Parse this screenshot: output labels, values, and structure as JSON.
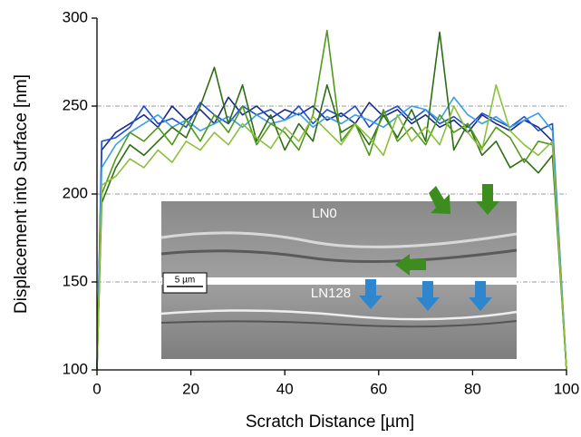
{
  "chart_data": {
    "type": "line",
    "x_label": "Scratch Distance [µm]",
    "y_label": "Displacement into Surface [nm]",
    "x": [
      0,
      1,
      4,
      7,
      10,
      13,
      16,
      19,
      22,
      25,
      28,
      31,
      34,
      37,
      40,
      43,
      46,
      49,
      52,
      55,
      58,
      61,
      64,
      67,
      70,
      73,
      76,
      79,
      82,
      85,
      88,
      91,
      94,
      97,
      100
    ],
    "series": [
      {
        "color": "#1a2a8c",
        "values": [
          100,
          225,
          235,
          240,
          245,
          238,
          250,
          242,
          248,
          240,
          255,
          245,
          250,
          243,
          248,
          245,
          250,
          242,
          246,
          240,
          252,
          244,
          248,
          240,
          245,
          238,
          242,
          235,
          245,
          240,
          236,
          242,
          238,
          230,
          100
        ]
      },
      {
        "color": "#2050d0",
        "values": [
          100,
          230,
          232,
          238,
          250,
          240,
          243,
          238,
          252,
          245,
          240,
          250,
          245,
          248,
          242,
          250,
          240,
          248,
          244,
          250,
          238,
          246,
          250,
          242,
          248,
          240,
          244,
          238,
          246,
          242,
          238,
          244,
          236,
          240,
          100
        ]
      },
      {
        "color": "#3a9ee8",
        "values": [
          100,
          215,
          228,
          235,
          240,
          245,
          238,
          242,
          236,
          240,
          244,
          238,
          245,
          240,
          242,
          246,
          238,
          244,
          240,
          245,
          242,
          238,
          244,
          250,
          248,
          242,
          255,
          245,
          240,
          244,
          238,
          242,
          246,
          236,
          100
        ]
      },
      {
        "color": "#2d6e12",
        "values": [
          100,
          195,
          215,
          228,
          222,
          230,
          238,
          232,
          250,
          272,
          240,
          262,
          230,
          245,
          225,
          240,
          230,
          262,
          235,
          240,
          228,
          245,
          232,
          248,
          230,
          292,
          225,
          240,
          222,
          230,
          215,
          220,
          212,
          222,
          100
        ]
      },
      {
        "color": "#4e9a1a",
        "values": [
          100,
          200,
          220,
          235,
          230,
          238,
          228,
          242,
          230,
          245,
          235,
          250,
          228,
          240,
          235,
          225,
          245,
          293,
          230,
          240,
          222,
          248,
          230,
          238,
          228,
          245,
          235,
          240,
          226,
          238,
          232,
          218,
          230,
          228,
          100
        ]
      },
      {
        "color": "#8cbf3a",
        "values": [
          100,
          205,
          210,
          220,
          215,
          225,
          218,
          230,
          225,
          235,
          228,
          240,
          232,
          226,
          238,
          230,
          244,
          236,
          228,
          240,
          232,
          222,
          245,
          230,
          238,
          228,
          250,
          235,
          225,
          262,
          236,
          228,
          222,
          230,
          100
        ]
      }
    ],
    "xlim": [
      0,
      100
    ],
    "xticks": [
      0,
      20,
      40,
      60,
      80,
      100
    ],
    "ylim": [
      100,
      300
    ],
    "yticks": [
      100,
      150,
      200,
      250,
      300
    ],
    "grid": true,
    "inset": {
      "labels": [
        "LN0",
        "LN128"
      ],
      "scale_bar": "5 µm"
    }
  }
}
